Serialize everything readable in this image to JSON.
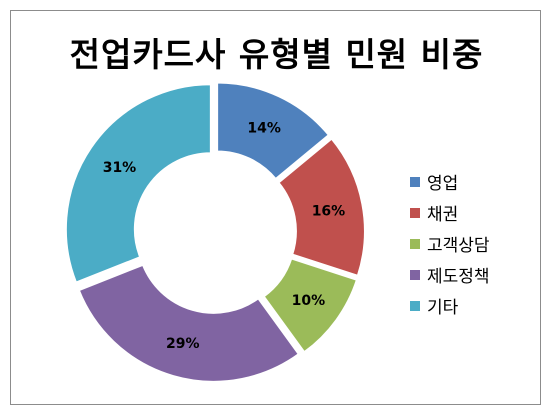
{
  "chart_data": {
    "type": "pie",
    "variant": "donut",
    "title": "전업카드사 유형별 민원 비중",
    "legend_position": "right",
    "categories": [
      "영업",
      "채권",
      "고객상담",
      "제도정책",
      "기타"
    ],
    "values": [
      14,
      16,
      10,
      29,
      31
    ],
    "labels": [
      "14%",
      "16%",
      "10%",
      "29%",
      "31%"
    ],
    "colors": [
      "#4F81BD",
      "#C0504D",
      "#9BBB59",
      "#8064A2",
      "#4BACC6"
    ],
    "exploded": true
  }
}
